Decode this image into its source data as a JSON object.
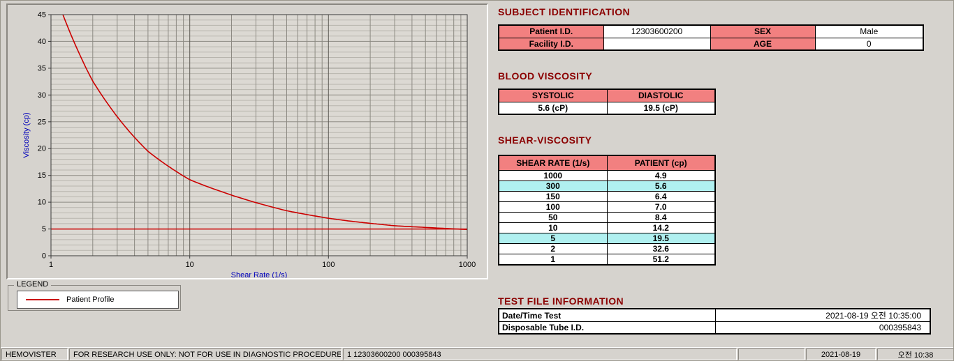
{
  "chart_data": {
    "type": "line",
    "x_scale": "log",
    "x": [
      1,
      2,
      5,
      10,
      50,
      100,
      150,
      300,
      1000
    ],
    "series": [
      {
        "name": "Patient Profile",
        "color": "#cc0000",
        "values": [
          51.2,
          32.6,
          19.5,
          14.2,
          8.4,
          7.0,
          6.4,
          5.6,
          4.9
        ]
      }
    ],
    "reference_line": {
      "value": 5.0,
      "color": "#cc0000"
    },
    "title": "",
    "xlabel": "Shear Rate (1/s)",
    "ylabel": "Viscosity (cp)",
    "xlim": [
      1,
      1000
    ],
    "ylim": [
      0,
      45
    ],
    "x_ticks": [
      1,
      10,
      100,
      1000
    ],
    "y_ticks": [
      0,
      5,
      10,
      15,
      20,
      25,
      30,
      35,
      40,
      45
    ],
    "grid": "log minor vertical lines, 1-unit horizontal lines with majors every 5",
    "legend_position": "below chart"
  },
  "legend": {
    "title": "LEGEND",
    "items": [
      {
        "label": "Patient Profile",
        "color": "#cc0000"
      }
    ]
  },
  "subject": {
    "heading": "SUBJECT IDENTIFICATION",
    "rows": [
      {
        "label1": "Patient I.D.",
        "value1": "12303600200",
        "label2": "SEX",
        "value2": "Male"
      },
      {
        "label1": "Facility I.D.",
        "value1": "",
        "label2": "AGE",
        "value2": "0"
      }
    ]
  },
  "blood_viscosity": {
    "heading": "BLOOD VISCOSITY",
    "columns": [
      "SYSTOLIC",
      "DIASTOLIC"
    ],
    "values": [
      "5.6 (cP)",
      "19.5 (cP)"
    ]
  },
  "shear_viscosity": {
    "heading": "SHEAR-VISCOSITY",
    "columns": [
      "SHEAR RATE (1/s)",
      "PATIENT (cp)"
    ],
    "rows": [
      {
        "rate": "1000",
        "value": "4.9",
        "highlight": false
      },
      {
        "rate": "300",
        "value": "5.6",
        "highlight": true
      },
      {
        "rate": "150",
        "value": "6.4",
        "highlight": false
      },
      {
        "rate": "100",
        "value": "7.0",
        "highlight": false
      },
      {
        "rate": "50",
        "value": "8.4",
        "highlight": false
      },
      {
        "rate": "10",
        "value": "14.2",
        "highlight": false
      },
      {
        "rate": "5",
        "value": "19.5",
        "highlight": true
      },
      {
        "rate": "2",
        "value": "32.6",
        "highlight": false
      },
      {
        "rate": "1",
        "value": "51.2",
        "highlight": false
      }
    ]
  },
  "test_file": {
    "heading": "TEST FILE INFORMATION",
    "rows": [
      {
        "label": "Date/Time Test",
        "value": "2021-08-19   오전 10:35:00"
      },
      {
        "label": "Disposable Tube I.D.",
        "value": "000395843"
      }
    ]
  },
  "status_bar": {
    "app": "HEMOVISTER",
    "notice": "FOR RESEARCH USE ONLY: NOT FOR USE IN DIAGNOSTIC PROCEDURES",
    "record": "1  12303600200  000395843",
    "spare": "",
    "date": "2021-08-19",
    "time": "오전 10:38"
  },
  "colors": {
    "heading": "#8b0000",
    "table_header_bg": "#f28080",
    "highlight_bg": "#b0f0f0",
    "axis_label": "#0000bb",
    "line": "#cc0000",
    "window_bg": "#d6d3ce"
  }
}
